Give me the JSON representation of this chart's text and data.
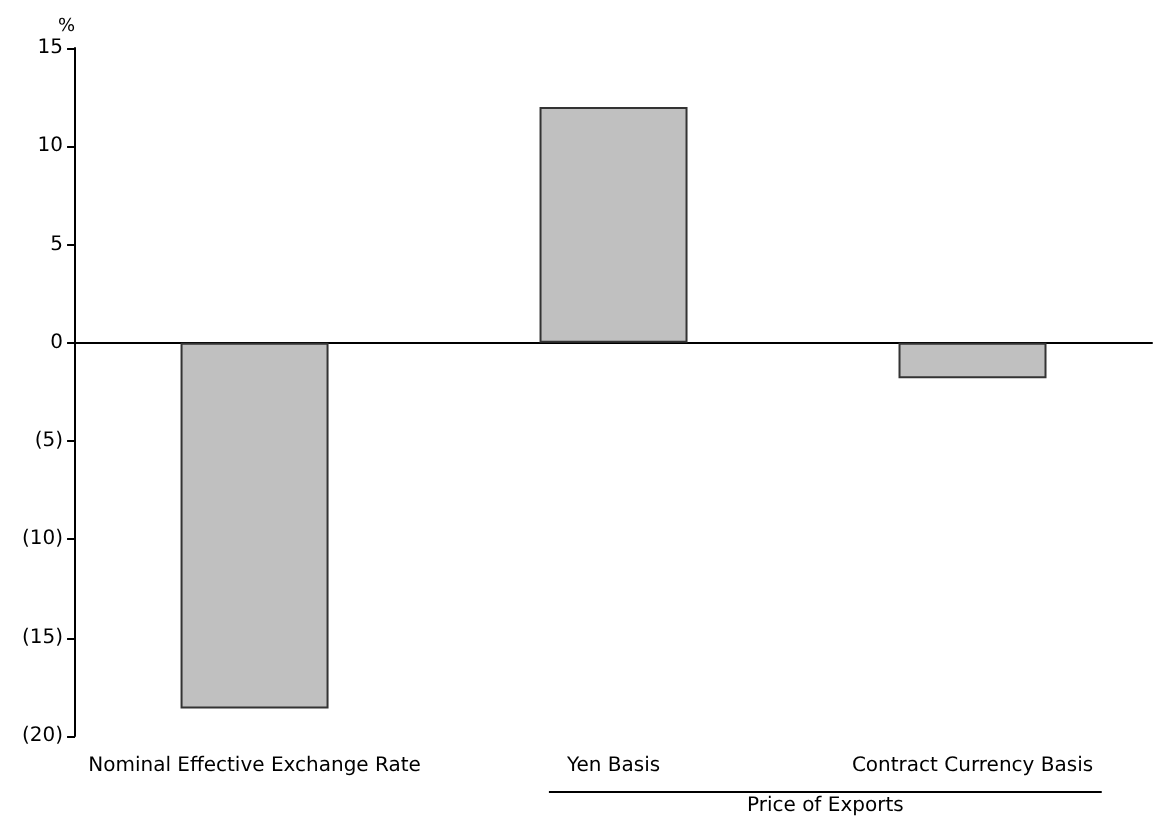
{
  "chart_data": {
    "type": "bar",
    "ylabel": "%",
    "categories": [
      "Nominal Effective Exchange Rate",
      "Yen Basis",
      "Contract Currency Basis"
    ],
    "values": [
      -18.6,
      12.0,
      -1.8
    ],
    "color": "#c0c0c0",
    "ylim": [
      -20,
      15
    ],
    "yticks": [
      {
        "value": -20,
        "label": "(20)"
      },
      {
        "value": -15,
        "label": "(15)"
      },
      {
        "value": -10,
        "label": "(10)"
      },
      {
        "value": -5,
        "label": "(5)"
      },
      0,
      5,
      10,
      15
    ],
    "annotations": [
      "Price of Exports"
    ]
  }
}
